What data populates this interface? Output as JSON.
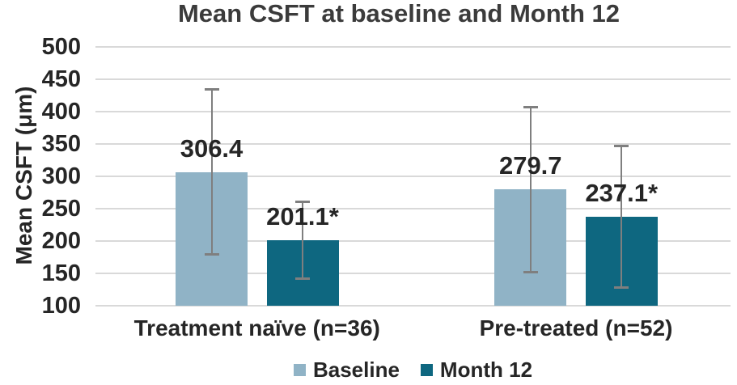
{
  "figure": {
    "title": "Mean CSFT at baseline and Month 12"
  },
  "chart_data": {
    "type": "bar",
    "title": "Mean CSFT at baseline and Month 12",
    "ylabel": "Mean CSFT (μm)",
    "xlabel": "",
    "categories": [
      "Treatment naïve (n=36)",
      "Pre-treated (n=52)"
    ],
    "series": [
      {
        "name": "Baseline",
        "color": "#90b3c6",
        "values": [
          306.4,
          279.7
        ],
        "errors": [
          128,
          128
        ],
        "data_labels": [
          "306.4",
          "279.7"
        ]
      },
      {
        "name": "Month 12",
        "color": "#0e6780",
        "values": [
          201.1,
          237.1
        ],
        "errors": [
          60,
          110
        ],
        "data_labels": [
          "201.1*",
          "237.1*"
        ]
      }
    ],
    "ylim": [
      100,
      500
    ],
    "ytick_step": 50,
    "ytick_labels": [
      "500",
      "450",
      "400",
      "350",
      "300",
      "250",
      "200",
      "150",
      "100"
    ],
    "grid": true,
    "gridline_color": "#d9d9d9",
    "error_bar_color": "#7f7f7f",
    "legend_position": "bottom",
    "legend": [
      "Baseline",
      "Month 12"
    ],
    "text_color": "#262626",
    "title_color": "#3b3b3b",
    "background": "#ffffff"
  }
}
